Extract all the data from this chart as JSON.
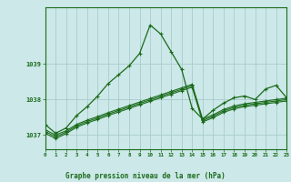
{
  "title": "Graphe pression niveau de la mer (hPa)",
  "bg_color": "#cce8e8",
  "grid_color": "#aacccc",
  "line_color": "#1a6b1a",
  "xlim": [
    0,
    23
  ],
  "ylim": [
    1036.6,
    1040.6
  ],
  "yticks": [
    1037,
    1038,
    1039
  ],
  "xticks": [
    0,
    1,
    2,
    3,
    4,
    5,
    6,
    7,
    8,
    9,
    10,
    11,
    12,
    13,
    14,
    15,
    16,
    17,
    18,
    19,
    20,
    21,
    22,
    23
  ],
  "series_volatile": [
    1037.3,
    1037.05,
    1037.2,
    1037.55,
    1037.8,
    1038.1,
    1038.45,
    1038.7,
    1038.95,
    1039.3,
    1040.1,
    1039.85,
    1039.35,
    1038.85,
    1037.75,
    1037.45,
    1037.7,
    1037.9,
    1038.05,
    1038.1,
    1038.0,
    1038.3,
    1038.4,
    1038.05
  ],
  "series_linear1": [
    1037.15,
    1037.0,
    1037.12,
    1037.3,
    1037.42,
    1037.52,
    1037.63,
    1037.73,
    1037.83,
    1037.93,
    1038.03,
    1038.13,
    1038.23,
    1038.33,
    1038.43,
    1037.45,
    1037.57,
    1037.72,
    1037.82,
    1037.88,
    1037.92,
    1037.96,
    1038.0,
    1038.04
  ],
  "series_linear2": [
    1037.1,
    1036.95,
    1037.08,
    1037.26,
    1037.38,
    1037.48,
    1037.59,
    1037.69,
    1037.79,
    1037.89,
    1037.99,
    1038.09,
    1038.19,
    1038.29,
    1038.39,
    1037.41,
    1037.53,
    1037.68,
    1037.78,
    1037.84,
    1037.88,
    1037.92,
    1037.96,
    1038.0
  ],
  "series_linear3": [
    1037.05,
    1036.9,
    1037.04,
    1037.22,
    1037.34,
    1037.44,
    1037.55,
    1037.65,
    1037.75,
    1037.85,
    1037.95,
    1038.05,
    1038.15,
    1038.25,
    1038.35,
    1037.37,
    1037.49,
    1037.64,
    1037.74,
    1037.8,
    1037.84,
    1037.88,
    1037.92,
    1037.96
  ]
}
